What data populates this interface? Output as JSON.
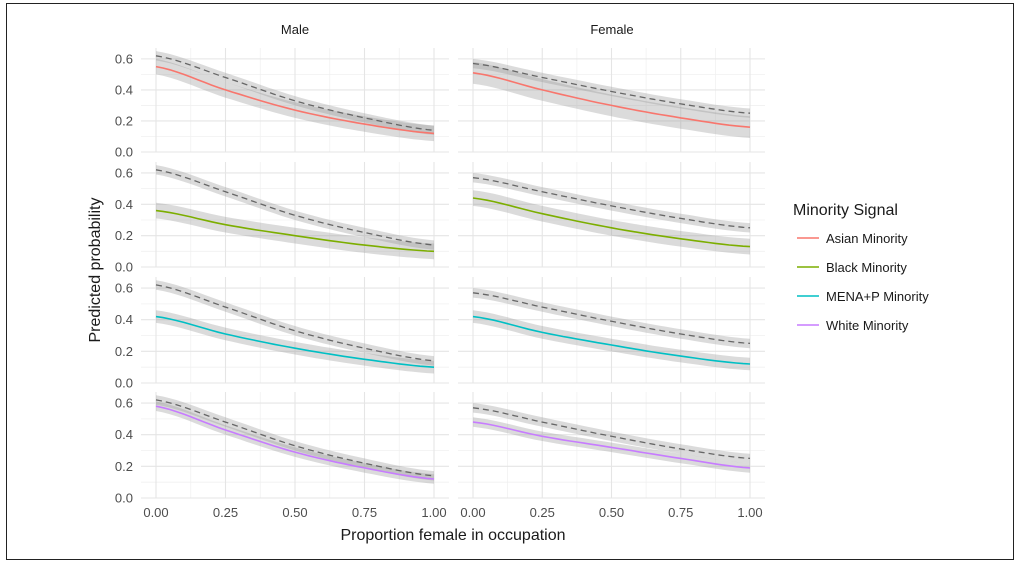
{
  "chart_data": {
    "type": "line",
    "facet_columns": [
      "Male",
      "Female"
    ],
    "facet_rows": [
      "Asian Minority",
      "Black Minority",
      "MENA+P Minority",
      "White Minority"
    ],
    "xlabel": "Proportion female in occupation",
    "ylabel": "Predicted probability",
    "x_ticks": [
      "0.00",
      "0.25",
      "0.50",
      "0.75",
      "1.00"
    ],
    "y_ticks": [
      "0.0",
      "0.2",
      "0.4",
      "0.6"
    ],
    "xlim": [
      0,
      1
    ],
    "ylim": [
      0,
      0.67
    ],
    "grid": true,
    "legend": {
      "title": "Minority Signal",
      "placement": "right",
      "entries": [
        {
          "name": "Asian Minority",
          "color": "#F8766D"
        },
        {
          "name": "Black Minority",
          "color": "#7CAE00"
        },
        {
          "name": "MENA+P Minority",
          "color": "#00BFC4"
        },
        {
          "name": "White Minority",
          "color": "#C77CFF"
        }
      ]
    },
    "reference_line": {
      "style": "dashed",
      "color": "#666666"
    },
    "x": [
      0,
      0.25,
      0.5,
      0.75,
      1.0
    ],
    "panels": [
      {
        "row": "Asian Minority",
        "col": "Male",
        "series": {
          "name": "Asian Minority",
          "values": [
            0.55,
            0.4,
            0.27,
            0.18,
            0.12
          ],
          "ci": 0.05
        },
        "reference": [
          0.62,
          0.48,
          0.33,
          0.22,
          0.14
        ],
        "ref_ci": 0.03
      },
      {
        "row": "Asian Minority",
        "col": "Female",
        "series": {
          "name": "Asian Minority",
          "values": [
            0.51,
            0.4,
            0.3,
            0.22,
            0.16
          ],
          "ci": 0.07
        },
        "reference": [
          0.57,
          0.48,
          0.39,
          0.31,
          0.25
        ],
        "ref_ci": 0.03
      },
      {
        "row": "Black Minority",
        "col": "Male",
        "series": {
          "name": "Black Minority",
          "values": [
            0.36,
            0.27,
            0.2,
            0.14,
            0.1
          ],
          "ci": 0.05
        },
        "reference": [
          0.62,
          0.48,
          0.33,
          0.22,
          0.14
        ],
        "ref_ci": 0.03
      },
      {
        "row": "Black Minority",
        "col": "Female",
        "series": {
          "name": "Black Minority",
          "values": [
            0.44,
            0.34,
            0.25,
            0.18,
            0.13
          ],
          "ci": 0.05
        },
        "reference": [
          0.57,
          0.48,
          0.39,
          0.31,
          0.25
        ],
        "ref_ci": 0.03
      },
      {
        "row": "MENA+P Minority",
        "col": "Male",
        "series": {
          "name": "MENA+P Minority",
          "values": [
            0.42,
            0.31,
            0.22,
            0.15,
            0.1
          ],
          "ci": 0.04
        },
        "reference": [
          0.62,
          0.48,
          0.33,
          0.22,
          0.14
        ],
        "ref_ci": 0.03
      },
      {
        "row": "MENA+P Minority",
        "col": "Female",
        "series": {
          "name": "MENA+P Minority",
          "values": [
            0.42,
            0.32,
            0.24,
            0.17,
            0.12
          ],
          "ci": 0.04
        },
        "reference": [
          0.57,
          0.48,
          0.39,
          0.31,
          0.25
        ],
        "ref_ci": 0.03
      },
      {
        "row": "White Minority",
        "col": "Male",
        "series": {
          "name": "White Minority",
          "values": [
            0.58,
            0.43,
            0.29,
            0.19,
            0.12
          ],
          "ci": 0.03
        },
        "reference": [
          0.62,
          0.48,
          0.33,
          0.22,
          0.14
        ],
        "ref_ci": 0.03
      },
      {
        "row": "White Minority",
        "col": "Female",
        "series": {
          "name": "White Minority",
          "values": [
            0.48,
            0.39,
            0.32,
            0.25,
            0.19
          ],
          "ci": 0.03
        },
        "reference": [
          0.57,
          0.48,
          0.39,
          0.31,
          0.25
        ],
        "ref_ci": 0.03
      }
    ]
  }
}
